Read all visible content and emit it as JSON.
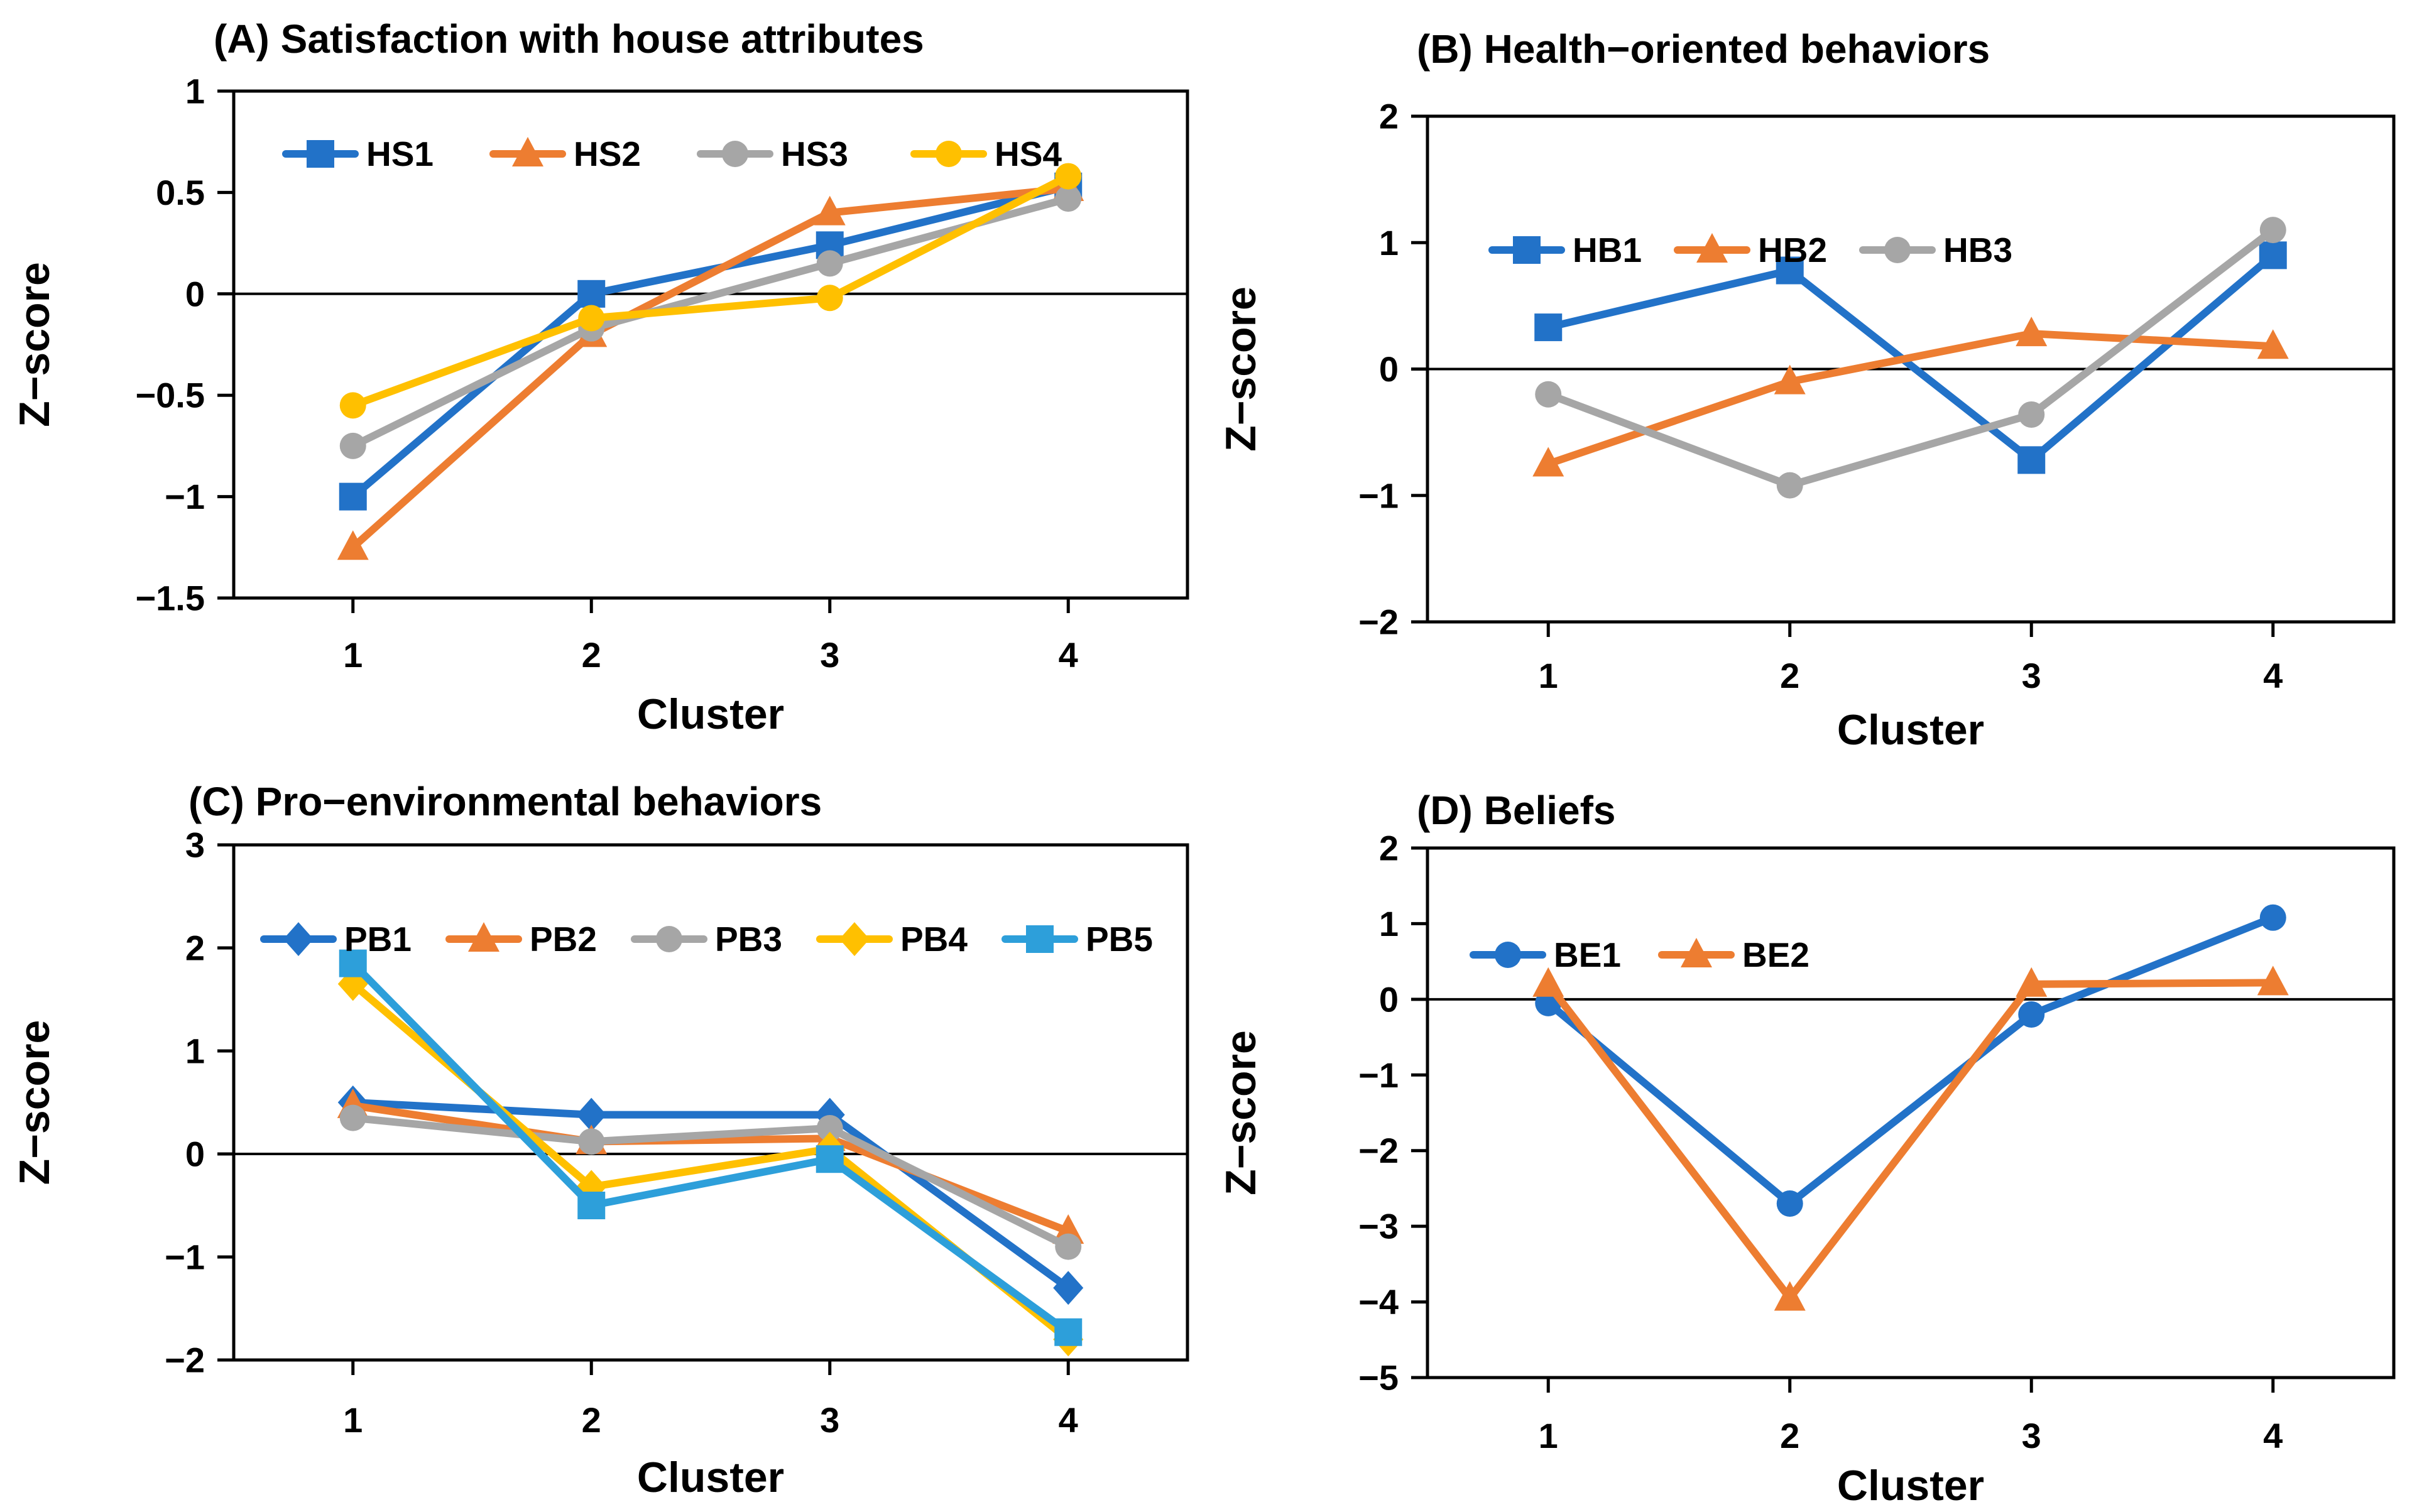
{
  "figure": {
    "background": "#ffffff",
    "text_color": "#000000"
  },
  "chart_data": [
    {
      "panel": "A",
      "type": "line",
      "title": "(A) Satisfaction with house attributes",
      "xlabel": "Cluster",
      "ylabel": "Z-score",
      "categories": [
        "1",
        "2",
        "3",
        "4"
      ],
      "ylim": [
        -1.5,
        1
      ],
      "yticks": [
        1,
        0.5,
        0,
        -0.5,
        -1,
        -1.5
      ],
      "zero_line": true,
      "grid": false,
      "legend_position": "top-inside",
      "series": [
        {
          "name": "HS1",
          "color": "#2272C8",
          "marker": "square",
          "values": [
            -1.0,
            0.0,
            0.24,
            0.53
          ]
        },
        {
          "name": "HS2",
          "color": "#ED7D31",
          "marker": "triangle",
          "values": [
            -1.25,
            -0.2,
            0.4,
            0.52
          ]
        },
        {
          "name": "HS3",
          "color": "#A6A6A6",
          "marker": "circle",
          "values": [
            -0.75,
            -0.17,
            0.15,
            0.47
          ]
        },
        {
          "name": "HS4",
          "color": "#FFC000",
          "marker": "circle",
          "values": [
            -0.55,
            -0.12,
            -0.02,
            0.58
          ]
        }
      ]
    },
    {
      "panel": "B",
      "type": "line",
      "title": "(B) Health-oriented behaviors",
      "xlabel": "Cluster",
      "ylabel": "Z-score",
      "categories": [
        "1",
        "2",
        "3",
        "4"
      ],
      "ylim": [
        -2,
        2
      ],
      "yticks": [
        2,
        1,
        0,
        -1,
        -2
      ],
      "zero_line": true,
      "grid": false,
      "legend_position": "top-inside",
      "series": [
        {
          "name": "HB1",
          "color": "#2272C8",
          "marker": "square",
          "values": [
            0.33,
            0.78,
            -0.72,
            0.9
          ]
        },
        {
          "name": "HB2",
          "color": "#ED7D31",
          "marker": "triangle",
          "values": [
            -0.75,
            -0.1,
            0.28,
            0.18
          ]
        },
        {
          "name": "HB3",
          "color": "#A6A6A6",
          "marker": "circle",
          "values": [
            -0.2,
            -0.92,
            -0.36,
            1.1
          ]
        }
      ]
    },
    {
      "panel": "C",
      "type": "line",
      "title": "(C) Pro-environmental behaviors",
      "xlabel": "Cluster",
      "ylabel": "Z-score",
      "categories": [
        "1",
        "2",
        "3",
        "4"
      ],
      "ylim": [
        -2,
        3
      ],
      "yticks": [
        3,
        2,
        1,
        0,
        -1,
        -2
      ],
      "zero_line": true,
      "grid": false,
      "legend_position": "top-inside",
      "series": [
        {
          "name": "PB1",
          "color": "#2272C8",
          "marker": "diamond",
          "values": [
            0.5,
            0.38,
            0.38,
            -1.3
          ]
        },
        {
          "name": "PB2",
          "color": "#ED7D31",
          "marker": "triangle",
          "values": [
            0.47,
            0.12,
            0.15,
            -0.75
          ]
        },
        {
          "name": "PB3",
          "color": "#A6A6A6",
          "marker": "circle",
          "values": [
            0.35,
            0.12,
            0.25,
            -0.9
          ]
        },
        {
          "name": "PB4",
          "color": "#FFC000",
          "marker": "diamond",
          "values": [
            1.65,
            -0.32,
            0.05,
            -1.8
          ]
        },
        {
          "name": "PB5",
          "color": "#2D9FDA",
          "marker": "square",
          "values": [
            1.85,
            -0.5,
            -0.05,
            -1.73
          ]
        }
      ]
    },
    {
      "panel": "D",
      "type": "line",
      "title": "(D) Beliefs",
      "xlabel": "Cluster",
      "ylabel": "Z-score",
      "categories": [
        "1",
        "2",
        "3",
        "4"
      ],
      "ylim": [
        -5,
        2
      ],
      "yticks": [
        2,
        1,
        0,
        -1,
        -2,
        -3,
        -4,
        -5
      ],
      "zero_line": true,
      "grid": false,
      "legend_position": "top-inside",
      "series": [
        {
          "name": "BE1",
          "color": "#2272C8",
          "marker": "circle",
          "values": [
            -0.05,
            -2.7,
            -0.2,
            1.08
          ]
        },
        {
          "name": "BE2",
          "color": "#ED7D31",
          "marker": "triangle",
          "values": [
            0.2,
            -3.95,
            0.2,
            0.22
          ]
        }
      ]
    }
  ]
}
